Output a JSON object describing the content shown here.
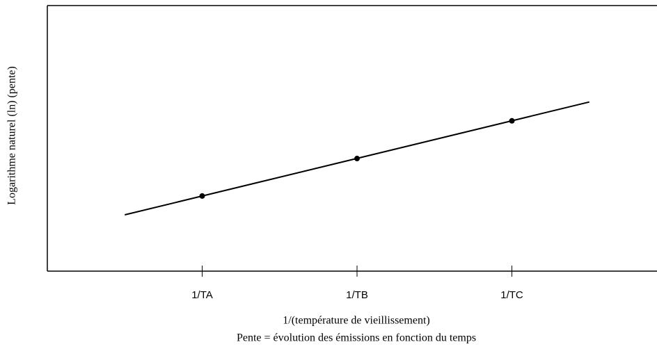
{
  "chart_data": {
    "type": "line",
    "y_label": "Logarithme naturel (ln) (pente)",
    "x_label": "1/(température de vieillissement)",
    "note": "Pente = évolution des émissions en fonction du temps",
    "xlim": [
      0,
      3.937
    ],
    "ylim": [
      0,
      100
    ],
    "xticks": [
      {
        "value": 1,
        "label": "1/TA"
      },
      {
        "value": 2,
        "label": "1/TB"
      },
      {
        "value": 3,
        "label": "1/TC"
      }
    ],
    "color": "#000000",
    "series": [
      {
        "x": [
          0.5,
          3.5
        ],
        "values": [
          21.2,
          63.7
        ],
        "markers": false
      },
      {
        "x": [
          1,
          2,
          3
        ],
        "values": [
          28.3,
          42.4,
          56.6
        ],
        "markers": true
      }
    ]
  }
}
